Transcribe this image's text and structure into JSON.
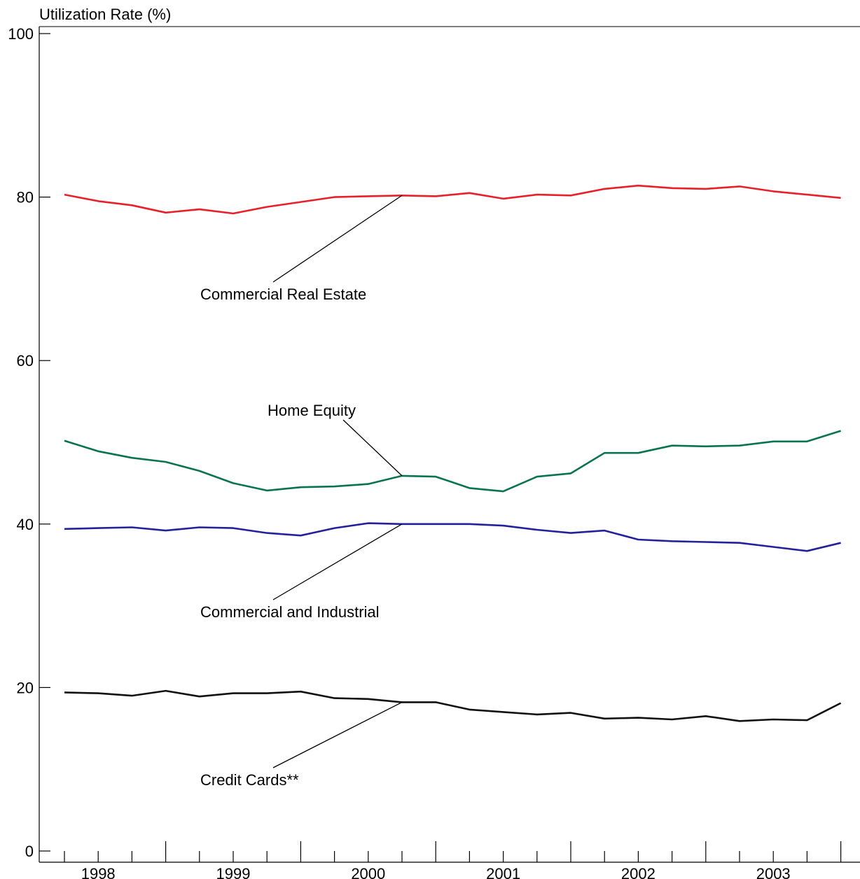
{
  "chart_data": {
    "type": "line",
    "ylabel": "Utilization Rate (%)",
    "xlabel": "",
    "title": "",
    "ylim": [
      0,
      100
    ],
    "yticks": [
      0,
      20,
      40,
      60,
      80,
      100
    ],
    "x_year_labels": [
      "1998",
      "1999",
      "2000",
      "2001",
      "2002",
      "2003"
    ],
    "x_quarters": [
      "1997Q4",
      "1998Q1",
      "1998Q2",
      "1998Q3",
      "1998Q4",
      "1999Q1",
      "1999Q2",
      "1999Q3",
      "1999Q4",
      "2000Q1",
      "2000Q2",
      "2000Q3",
      "2000Q4",
      "2001Q1",
      "2001Q2",
      "2001Q3",
      "2001Q4",
      "2002Q1",
      "2002Q2",
      "2002Q3",
      "2002Q4",
      "2003Q1",
      "2003Q2",
      "2003Q3"
    ],
    "grid": false,
    "series": [
      {
        "name": "Commercial Real Estate",
        "color": "#e8202a",
        "values": [
          80.3,
          79.5,
          79.0,
          78.1,
          78.5,
          78.0,
          78.8,
          79.4,
          80.0,
          80.1,
          80.2,
          80.1,
          80.5,
          79.8,
          80.3,
          80.2,
          81.0,
          81.4,
          81.1,
          81.0,
          81.3,
          80.7,
          80.3,
          79.9
        ]
      },
      {
        "name": "Home Equity",
        "color": "#0a7350",
        "values": [
          50.2,
          48.9,
          48.1,
          47.6,
          46.5,
          45.0,
          44.1,
          44.5,
          44.6,
          44.9,
          45.9,
          45.8,
          44.4,
          44.0,
          45.8,
          46.2,
          48.7,
          48.7,
          49.6,
          49.5,
          49.6,
          50.1,
          50.1,
          51.4
        ]
      },
      {
        "name": "Commercial and Industrial",
        "color": "#23229a",
        "values": [
          39.4,
          39.5,
          39.6,
          39.2,
          39.6,
          39.5,
          38.9,
          38.6,
          39.5,
          40.1,
          40.0,
          40.0,
          40.0,
          39.8,
          39.3,
          38.9,
          39.2,
          38.1,
          37.9,
          37.8,
          37.7,
          37.2,
          36.7,
          37.7
        ]
      },
      {
        "name": "Credit Cards**",
        "color": "#111111",
        "values": [
          19.4,
          19.3,
          19.0,
          19.6,
          18.9,
          19.3,
          19.3,
          19.5,
          18.7,
          18.6,
          18.2,
          18.2,
          17.3,
          17.0,
          16.7,
          16.9,
          16.2,
          16.3,
          16.1,
          16.5,
          15.9,
          16.1,
          16.0,
          18.1
        ]
      }
    ],
    "annotations": [
      {
        "text": "Commercial Real Estate",
        "series": "Commercial Real Estate"
      },
      {
        "text": "Home Equity",
        "series": "Home Equity"
      },
      {
        "text": "Commercial and Industrial",
        "series": "Commercial and Industrial"
      },
      {
        "text": "Credit Cards**",
        "series": "Credit Cards**"
      }
    ]
  }
}
